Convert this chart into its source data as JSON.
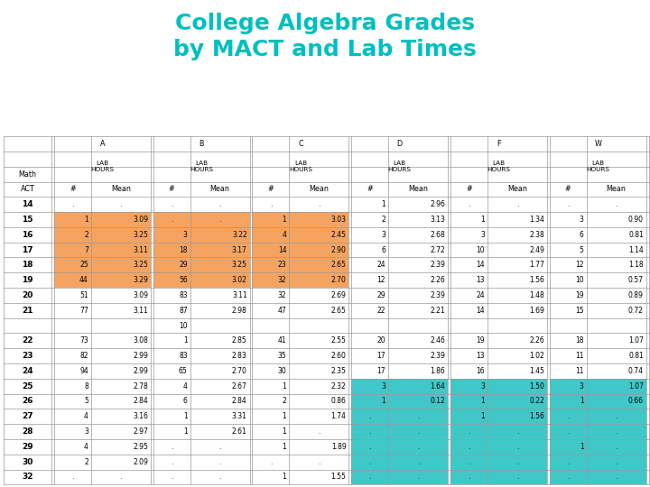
{
  "title": "College Algebra Grades\nby MACT and Lab Times",
  "title_color": "#00BFBF",
  "background_color": "#FFFFFF",
  "orange_color": "#F4A460",
  "teal_color": "#40C8C8",
  "rows": [
    {
      "act": "14",
      "A_n": ".",
      "A_m": ".",
      "B_n": ".",
      "B_m": ".",
      "C_n": ".",
      "C_m": ".",
      "D_n": "1",
      "D_m": "2.96",
      "F_n": ".",
      "F_m": ".",
      "W_n": ".",
      "W_m": "."
    },
    {
      "act": "15",
      "A_n": "1",
      "A_m": "3.09",
      "B_n": ".",
      "B_m": ".",
      "C_n": "1",
      "C_m": "3.03",
      "D_n": "2",
      "D_m": "3.13",
      "F_n": "1",
      "F_m": "1.34",
      "W_n": "3",
      "W_m": "0.90"
    },
    {
      "act": "16",
      "A_n": "2",
      "A_m": "3.25",
      "B_n": "3",
      "B_m": "3.22",
      "C_n": "4",
      "C_m": "2.45",
      "D_n": "3",
      "D_m": "2.68",
      "F_n": "3",
      "F_m": "2.38",
      "W_n": "6",
      "W_m": "0.81"
    },
    {
      "act": "17",
      "A_n": "7",
      "A_m": "3.11",
      "B_n": "18",
      "B_m": "3.17",
      "C_n": "14",
      "C_m": "2.90",
      "D_n": "6",
      "D_m": "2.72",
      "F_n": "10",
      "F_m": "2.49",
      "W_n": "5",
      "W_m": "1.14"
    },
    {
      "act": "18",
      "A_n": "25",
      "A_m": "3.25",
      "B_n": "29",
      "B_m": "3.25",
      "C_n": "23",
      "C_m": "2.65",
      "D_n": "24",
      "D_m": "2.39",
      "F_n": "14",
      "F_m": "1.77",
      "W_n": "12",
      "W_m": "1.18"
    },
    {
      "act": "19",
      "A_n": "44",
      "A_m": "3.29",
      "B_n": "56",
      "B_m": "3.02",
      "C_n": "32",
      "C_m": "2.70",
      "D_n": "12",
      "D_m": "2.26",
      "F_n": "13",
      "F_m": "1.56",
      "W_n": "10",
      "W_m": "0.57"
    },
    {
      "act": "20",
      "A_n": "51",
      "A_m": "3.09",
      "B_n": "83",
      "B_m": "3.11",
      "C_n": "32",
      "C_m": "2.69",
      "D_n": "29",
      "D_m": "2.39",
      "F_n": "24",
      "F_m": "1.48",
      "W_n": "19",
      "W_m": "0.89"
    },
    {
      "act": "21",
      "A_n": "77",
      "A_m": "3.11",
      "B_n": "87",
      "B_m": "2.98",
      "C_n": "47",
      "C_m": "2.65",
      "D_n": "22",
      "D_m": "2.21",
      "F_n": "14",
      "F_m": "1.69",
      "W_n": "15",
      "W_m": "0.72"
    },
    {
      "act": "",
      "A_n": "",
      "A_m": "",
      "B_n": "10",
      "B_m": "",
      "C_n": "",
      "C_m": "",
      "D_n": "",
      "D_m": "",
      "F_n": "",
      "F_m": "",
      "W_n": "",
      "W_m": ""
    },
    {
      "act": "22",
      "A_n": "73",
      "A_m": "3.08",
      "B_n": "1",
      "B_m": "2.85",
      "C_n": "41",
      "C_m": "2.55",
      "D_n": "20",
      "D_m": "2.46",
      "F_n": "19",
      "F_m": "2.26",
      "W_n": "18",
      "W_m": "1.07"
    },
    {
      "act": "23",
      "A_n": "82",
      "A_m": "2.99",
      "B_n": "83",
      "B_m": "2.83",
      "C_n": "35",
      "C_m": "2.60",
      "D_n": "17",
      "D_m": "2.39",
      "F_n": "13",
      "F_m": "1.02",
      "W_n": "11",
      "W_m": "0.81"
    },
    {
      "act": "24",
      "A_n": "94",
      "A_m": "2.99",
      "B_n": "65",
      "B_m": "2.70",
      "C_n": "30",
      "C_m": "2.35",
      "D_n": "17",
      "D_m": "1.86",
      "F_n": "16",
      "F_m": "1.45",
      "W_n": "11",
      "W_m": "0.74"
    },
    {
      "act": "25",
      "A_n": "8",
      "A_m": "2.78",
      "B_n": "4",
      "B_m": "2.67",
      "C_n": "1",
      "C_m": "2.32",
      "D_n": "3",
      "D_m": "1.64",
      "F_n": "3",
      "F_m": "1.50",
      "W_n": "3",
      "W_m": "1.07"
    },
    {
      "act": "26",
      "A_n": "5",
      "A_m": "2.84",
      "B_n": "6",
      "B_m": "2.84",
      "C_n": "2",
      "C_m": "0.86",
      "D_n": "1",
      "D_m": "0.12",
      "F_n": "1",
      "F_m": "0.22",
      "W_n": "1",
      "W_m": "0.66"
    },
    {
      "act": "27",
      "A_n": "4",
      "A_m": "3.16",
      "B_n": "1",
      "B_m": "3.31",
      "C_n": "1",
      "C_m": "1.74",
      "D_n": ".",
      "D_m": ".",
      "F_n": "1",
      "F_m": "1.56",
      "W_n": ".",
      "W_m": "."
    },
    {
      "act": "28",
      "A_n": "3",
      "A_m": "2.97",
      "B_n": "1",
      "B_m": "2.61",
      "C_n": "1",
      "C_m": ".",
      "D_n": ".",
      "D_m": ".",
      "F_n": ".",
      "F_m": ".",
      "W_n": ".",
      "W_m": "."
    },
    {
      "act": "29",
      "A_n": "4",
      "A_m": "2.95",
      "B_n": ".",
      "B_m": ".",
      "C_n": "1",
      "C_m": "1.89",
      "D_n": ".",
      "D_m": ".",
      "F_n": ".",
      "F_m": ".",
      "W_n": "1",
      "W_m": "."
    },
    {
      "act": "30",
      "A_n": "2",
      "A_m": "2.09",
      "B_n": ".",
      "B_m": ".",
      "C_n": ".",
      "C_m": ".",
      "D_n": ".",
      "D_m": ".",
      "F_n": ".",
      "F_m": ".",
      "W_n": ".",
      "W_m": "."
    },
    {
      "act": "32",
      "A_n": ".",
      "A_m": ".",
      "B_n": ".",
      "B_m": ".",
      "C_n": "1",
      "C_m": "1.55",
      "D_n": ".",
      "D_m": ".",
      "F_n": ".",
      "F_m": ".",
      "W_n": ".",
      "W_m": "."
    }
  ],
  "orange_rows": [
    1,
    2,
    3,
    4,
    5
  ],
  "teal_rows": [
    12,
    13,
    14,
    15,
    16,
    17,
    18
  ]
}
